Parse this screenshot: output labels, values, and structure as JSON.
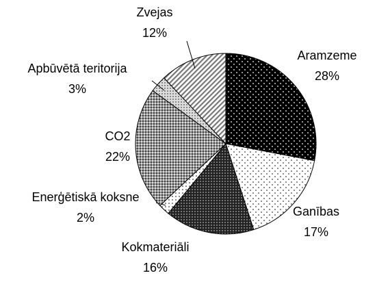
{
  "chart_data": {
    "type": "pie",
    "categories": [
      "Aramzeme",
      "Ganības",
      "Kokmateriāli",
      "Enerģētiskā koksne",
      "CO2",
      "Apbūvētā teritorija",
      "Zvejas"
    ],
    "values": [
      28,
      17,
      16,
      2,
      22,
      3,
      12
    ],
    "value_labels": [
      "28%",
      "17%",
      "16%",
      "2%",
      "22%",
      "3%",
      "12%"
    ]
  }
}
